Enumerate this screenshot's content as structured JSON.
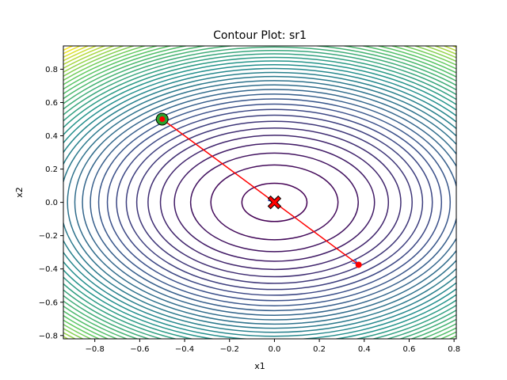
{
  "chart_data": {
    "type": "contour",
    "title": "Contour Plot: sr1",
    "xlabel": "x1",
    "ylabel": "x2",
    "xlim": [
      -0.94,
      0.81
    ],
    "ylim": [
      -0.82,
      0.94
    ],
    "x_ticks": [
      -0.8,
      -0.6,
      -0.4,
      -0.2,
      0.0,
      0.2,
      0.4,
      0.6,
      0.8
    ],
    "y_ticks": [
      -0.8,
      -0.6,
      -0.4,
      -0.2,
      0.0,
      0.2,
      0.4,
      0.6,
      0.8
    ],
    "x_tick_labels": [
      "−0.8",
      "−0.6",
      "−0.4",
      "−0.2",
      "0.0",
      "0.2",
      "0.4",
      "0.6",
      "0.8"
    ],
    "y_tick_labels": [
      "−0.8",
      "−0.6",
      "−0.4",
      "−0.2",
      "0.0",
      "0.2",
      "0.4",
      "0.6",
      "0.8"
    ],
    "grid": false,
    "colormap": "viridis",
    "colormap_stops": [
      "#440154",
      "#3b528b",
      "#21918c",
      "#5ec962",
      "#fde725"
    ],
    "contour": {
      "center": [
        0.0,
        0.0
      ],
      "ellipse_ratio_x_over_y": 1.26,
      "levels": 38,
      "innermost_semi_axis_y": 0.115,
      "outermost_semi_axis_y": 1.18
    },
    "path": {
      "color": "#ff0000",
      "arrow_color": "#1f3fbf",
      "points": [
        [
          -0.5,
          0.5
        ],
        [
          0.0,
          0.0
        ],
        [
          0.375,
          -0.375
        ]
      ]
    },
    "start_point": {
      "x": -0.5,
      "y": 0.5,
      "ring_color": "#2ca02c",
      "dot_color": "#ff0000"
    },
    "optimum_marker": {
      "x": 0.0,
      "y": 0.0,
      "symbol": "X",
      "color": "#ff0000"
    },
    "end_point": {
      "x": 0.375,
      "y": -0.375,
      "color": "#ff0000"
    }
  }
}
